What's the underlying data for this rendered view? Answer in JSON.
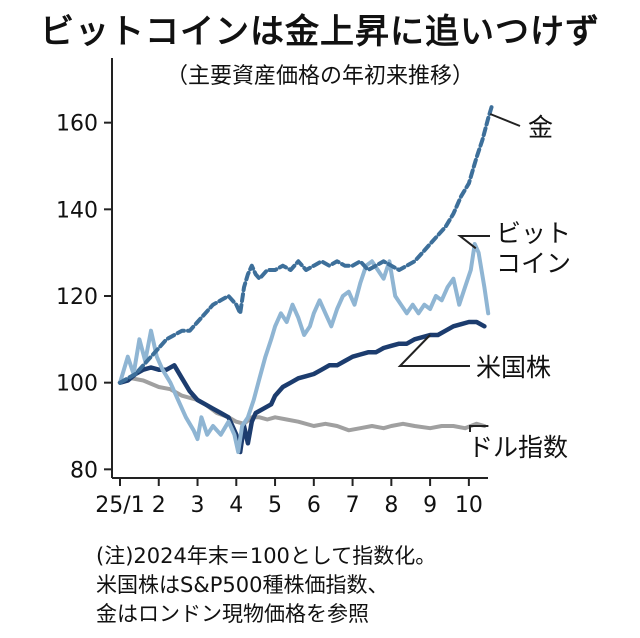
{
  "title": "ビットコインは金上昇に追いつけず",
  "subtitle": "（主要資産価格の年初来推移）",
  "notes": [
    "(注)2024年末＝100として指数化。",
    "米国株はS&P500種株価指数、",
    "金はロンドン現物価格を参照"
  ],
  "colors": {
    "gold": "#3d6f9a",
    "bitcoin": "#8fb5d3",
    "us_stocks": "#1c3c6e",
    "dollar_index": "#a0a0a0",
    "axis": "#222222"
  },
  "chart_data": {
    "type": "line",
    "ylim": [
      78,
      168
    ],
    "yticks": [
      80,
      100,
      120,
      140,
      160
    ],
    "xlim": [
      1,
      10.7
    ],
    "xticks": [
      {
        "value": 1,
        "label": "25/1"
      },
      {
        "value": 2,
        "label": "2"
      },
      {
        "value": 3,
        "label": "3"
      },
      {
        "value": 4,
        "label": "4"
      },
      {
        "value": 5,
        "label": "5"
      },
      {
        "value": 6,
        "label": "6"
      },
      {
        "value": 7,
        "label": "7"
      },
      {
        "value": 8,
        "label": "8"
      },
      {
        "value": 9,
        "label": "9"
      },
      {
        "value": 10,
        "label": "10"
      }
    ],
    "series": [
      {
        "name": "ドル指数",
        "label_lines": [
          "ドル指数"
        ],
        "color_key": "dollar_index",
        "style": "solid",
        "points": [
          [
            1,
            100
          ],
          [
            1.3,
            101
          ],
          [
            1.6,
            100.5
          ],
          [
            2,
            99
          ],
          [
            2.3,
            98.5
          ],
          [
            2.6,
            97
          ],
          [
            3,
            96
          ],
          [
            3.2,
            95
          ],
          [
            3.5,
            93
          ],
          [
            3.8,
            92
          ],
          [
            4,
            91
          ],
          [
            4.2,
            90.5
          ],
          [
            4.4,
            92
          ],
          [
            4.6,
            92
          ],
          [
            4.8,
            91.5
          ],
          [
            5,
            92
          ],
          [
            5.3,
            91.5
          ],
          [
            5.6,
            91
          ],
          [
            6,
            90
          ],
          [
            6.3,
            90.5
          ],
          [
            6.6,
            90
          ],
          [
            6.9,
            89
          ],
          [
            7.2,
            89.5
          ],
          [
            7.5,
            90
          ],
          [
            7.8,
            89.5
          ],
          [
            8,
            90
          ],
          [
            8.3,
            90.5
          ],
          [
            8.6,
            90
          ],
          [
            9,
            89.5
          ],
          [
            9.3,
            90
          ],
          [
            9.6,
            90
          ],
          [
            9.9,
            89.5
          ],
          [
            10.2,
            90.5
          ],
          [
            10.4,
            90
          ]
        ]
      },
      {
        "name": "米国株",
        "label_lines": [
          "米国株"
        ],
        "color_key": "us_stocks",
        "style": "solid",
        "points": [
          [
            1,
            100
          ],
          [
            1.2,
            100.5
          ],
          [
            1.4,
            102
          ],
          [
            1.6,
            103
          ],
          [
            1.8,
            103.5
          ],
          [
            2,
            103
          ],
          [
            2.2,
            103
          ],
          [
            2.4,
            104
          ],
          [
            2.6,
            101
          ],
          [
            2.8,
            98
          ],
          [
            3,
            96
          ],
          [
            3.2,
            95
          ],
          [
            3.4,
            94
          ],
          [
            3.6,
            93
          ],
          [
            3.8,
            92
          ],
          [
            4,
            88
          ],
          [
            4.1,
            84
          ],
          [
            4.2,
            90
          ],
          [
            4.3,
            86
          ],
          [
            4.4,
            91
          ],
          [
            4.5,
            93
          ],
          [
            4.7,
            94
          ],
          [
            4.9,
            95
          ],
          [
            5,
            97
          ],
          [
            5.2,
            99
          ],
          [
            5.4,
            100
          ],
          [
            5.6,
            101
          ],
          [
            5.8,
            101.5
          ],
          [
            6,
            102
          ],
          [
            6.2,
            103
          ],
          [
            6.4,
            104
          ],
          [
            6.6,
            104
          ],
          [
            6.8,
            105
          ],
          [
            7,
            106
          ],
          [
            7.2,
            106.5
          ],
          [
            7.4,
            107
          ],
          [
            7.6,
            107
          ],
          [
            7.8,
            108
          ],
          [
            8,
            108.5
          ],
          [
            8.2,
            109
          ],
          [
            8.4,
            109
          ],
          [
            8.6,
            110
          ],
          [
            8.8,
            110.5
          ],
          [
            9,
            111
          ],
          [
            9.2,
            111
          ],
          [
            9.4,
            112
          ],
          [
            9.6,
            113
          ],
          [
            9.8,
            113.5
          ],
          [
            10,
            114
          ],
          [
            10.2,
            114
          ],
          [
            10.4,
            113
          ]
        ]
      },
      {
        "name": "ビットコイン",
        "label_lines": [
          "ビット",
          "コイン"
        ],
        "color_key": "bitcoin",
        "style": "solid",
        "points": [
          [
            1,
            100
          ],
          [
            1.1,
            103
          ],
          [
            1.2,
            106
          ],
          [
            1.35,
            102
          ],
          [
            1.5,
            110
          ],
          [
            1.65,
            105
          ],
          [
            1.8,
            112
          ],
          [
            1.95,
            106
          ],
          [
            2.1,
            103
          ],
          [
            2.3,
            100
          ],
          [
            2.5,
            96
          ],
          [
            2.7,
            92
          ],
          [
            2.9,
            89
          ],
          [
            3,
            87
          ],
          [
            3.1,
            92
          ],
          [
            3.25,
            88
          ],
          [
            3.4,
            90
          ],
          [
            3.6,
            88
          ],
          [
            3.8,
            91
          ],
          [
            3.95,
            88
          ],
          [
            4.05,
            84
          ],
          [
            4.15,
            90
          ],
          [
            4.3,
            92
          ],
          [
            4.45,
            96
          ],
          [
            4.6,
            101
          ],
          [
            4.75,
            106
          ],
          [
            4.9,
            110
          ],
          [
            5,
            113
          ],
          [
            5.15,
            116
          ],
          [
            5.3,
            114
          ],
          [
            5.45,
            118
          ],
          [
            5.6,
            115
          ],
          [
            5.75,
            111
          ],
          [
            5.9,
            113
          ],
          [
            6,
            116
          ],
          [
            6.15,
            119
          ],
          [
            6.3,
            116
          ],
          [
            6.45,
            113
          ],
          [
            6.6,
            117
          ],
          [
            6.75,
            120
          ],
          [
            6.9,
            121
          ],
          [
            7.05,
            118
          ],
          [
            7.2,
            123
          ],
          [
            7.35,
            127
          ],
          [
            7.5,
            128
          ],
          [
            7.65,
            126
          ],
          [
            7.8,
            124
          ],
          [
            7.95,
            128
          ],
          [
            8.1,
            120
          ],
          [
            8.25,
            118
          ],
          [
            8.4,
            116
          ],
          [
            8.55,
            118
          ],
          [
            8.7,
            116
          ],
          [
            8.85,
            118
          ],
          [
            9,
            117
          ],
          [
            9.15,
            120
          ],
          [
            9.3,
            119
          ],
          [
            9.45,
            122
          ],
          [
            9.6,
            124
          ],
          [
            9.75,
            118
          ],
          [
            9.9,
            122
          ],
          [
            10.05,
            126
          ],
          [
            10.15,
            132
          ],
          [
            10.25,
            130
          ],
          [
            10.4,
            122
          ],
          [
            10.5,
            116
          ]
        ]
      },
      {
        "name": "金",
        "label_lines": [
          "金"
        ],
        "color_key": "gold",
        "style": "dashed",
        "points": [
          [
            1,
            100
          ],
          [
            1.2,
            101
          ],
          [
            1.4,
            102
          ],
          [
            1.6,
            104
          ],
          [
            1.8,
            106
          ],
          [
            2,
            108
          ],
          [
            2.2,
            110
          ],
          [
            2.4,
            111
          ],
          [
            2.6,
            112
          ],
          [
            2.8,
            112
          ],
          [
            3,
            114
          ],
          [
            3.2,
            116
          ],
          [
            3.4,
            118
          ],
          [
            3.6,
            119
          ],
          [
            3.8,
            120
          ],
          [
            4,
            118
          ],
          [
            4.1,
            116
          ],
          [
            4.2,
            122
          ],
          [
            4.3,
            125
          ],
          [
            4.4,
            127
          ],
          [
            4.5,
            125
          ],
          [
            4.6,
            124
          ],
          [
            4.8,
            126
          ],
          [
            5,
            126
          ],
          [
            5.2,
            127
          ],
          [
            5.4,
            126
          ],
          [
            5.6,
            128
          ],
          [
            5.8,
            126
          ],
          [
            6,
            127
          ],
          [
            6.2,
            128
          ],
          [
            6.4,
            127
          ],
          [
            6.6,
            128
          ],
          [
            6.8,
            127
          ],
          [
            7,
            127
          ],
          [
            7.2,
            128
          ],
          [
            7.4,
            126
          ],
          [
            7.6,
            127
          ],
          [
            7.8,
            128
          ],
          [
            8,
            127
          ],
          [
            8.2,
            126
          ],
          [
            8.4,
            127
          ],
          [
            8.6,
            128
          ],
          [
            8.8,
            130
          ],
          [
            9,
            132
          ],
          [
            9.2,
            134
          ],
          [
            9.4,
            136
          ],
          [
            9.6,
            139
          ],
          [
            9.8,
            143
          ],
          [
            10,
            146
          ],
          [
            10.2,
            152
          ],
          [
            10.35,
            156
          ],
          [
            10.5,
            161
          ],
          [
            10.6,
            164
          ]
        ]
      }
    ]
  }
}
